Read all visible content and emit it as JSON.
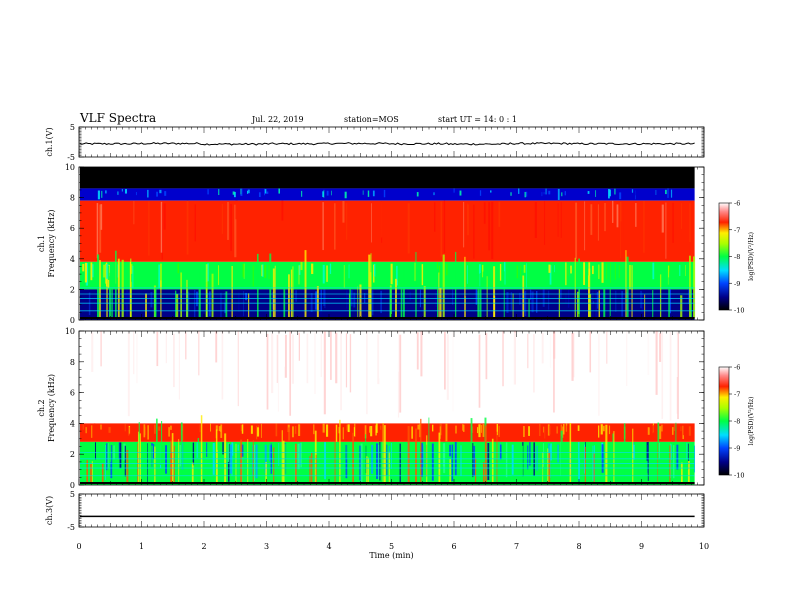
{
  "header": {
    "title": "VLF Spectra",
    "date": "Jul. 22, 2019",
    "station": "station=MOS",
    "start": "start UT =  14: 0  : 1"
  },
  "chart_data": [
    {
      "type": "line",
      "panel": "ch1-waveform",
      "ylabel": "ch.1(V)",
      "ylim": [
        -5,
        5
      ],
      "y_ticks": [
        "5",
        "-5"
      ],
      "series": [
        {
          "values": [
            -0.6,
            -0.5,
            -0.7,
            -0.6,
            -0.5,
            -0.6,
            -0.7,
            -0.5,
            -0.6,
            -0.6
          ]
        }
      ]
    },
    {
      "type": "heatmap",
      "panel": "ch1-spectrogram",
      "ylabel": "ch.1\nFrequency (kHz)",
      "ylim": [
        0,
        10
      ],
      "y_ticks": [
        "0",
        "2",
        "4",
        "6",
        "8",
        "10"
      ],
      "colorbar": {
        "label": "log(PSD)(V²/Hz)",
        "ticks": [
          "-6",
          "-7",
          "-8",
          "-9",
          "-10"
        ],
        "range": [
          -10,
          -6
        ]
      },
      "bands": [
        {
          "from_khz": 8.6,
          "to_khz": 10.0,
          "level": "black"
        },
        {
          "from_khz": 7.8,
          "to_khz": 8.6,
          "level": "blue-cyan"
        },
        {
          "from_khz": 3.8,
          "to_khz": 7.8,
          "level": "red"
        },
        {
          "from_khz": 2.0,
          "to_khz": 3.8,
          "level": "green-yellow"
        },
        {
          "from_khz": 0.0,
          "to_khz": 2.0,
          "level": "blue"
        }
      ]
    },
    {
      "type": "heatmap",
      "panel": "ch2-spectrogram",
      "ylabel": "ch.2\nFrequency (kHz)",
      "ylim": [
        0,
        10
      ],
      "y_ticks": [
        "0",
        "2",
        "4",
        "6",
        "8",
        "10"
      ],
      "colorbar": {
        "label": "log(PSD)(V²/Hz)",
        "ticks": [
          "-6",
          "-7",
          "-8",
          "-9",
          "-10"
        ],
        "range": [
          -10,
          -6
        ]
      },
      "bands": [
        {
          "from_khz": 4.0,
          "to_khz": 10.0,
          "level": "white-red"
        },
        {
          "from_khz": 2.8,
          "to_khz": 4.0,
          "level": "red-yellow"
        },
        {
          "from_khz": 0.0,
          "to_khz": 2.8,
          "level": "green-blue"
        }
      ]
    },
    {
      "type": "line",
      "panel": "ch3-waveform",
      "ylabel": "ch.3(V)",
      "ylim": [
        -5,
        5
      ],
      "y_ticks": [
        "5",
        "-5"
      ],
      "series": [
        {
          "values": [
            -1.8,
            -1.8,
            -1.8,
            -1.8,
            -1.8,
            -1.8,
            -1.8,
            -1.8,
            -1.8,
            -1.8
          ]
        }
      ]
    }
  ],
  "x_axis": {
    "label": "Time (min)",
    "xlim": [
      0,
      10
    ],
    "ticks": [
      "0",
      "1",
      "2",
      "3",
      "4",
      "5",
      "6",
      "7",
      "8",
      "9",
      "10"
    ],
    "data_end_min": 9.85
  }
}
